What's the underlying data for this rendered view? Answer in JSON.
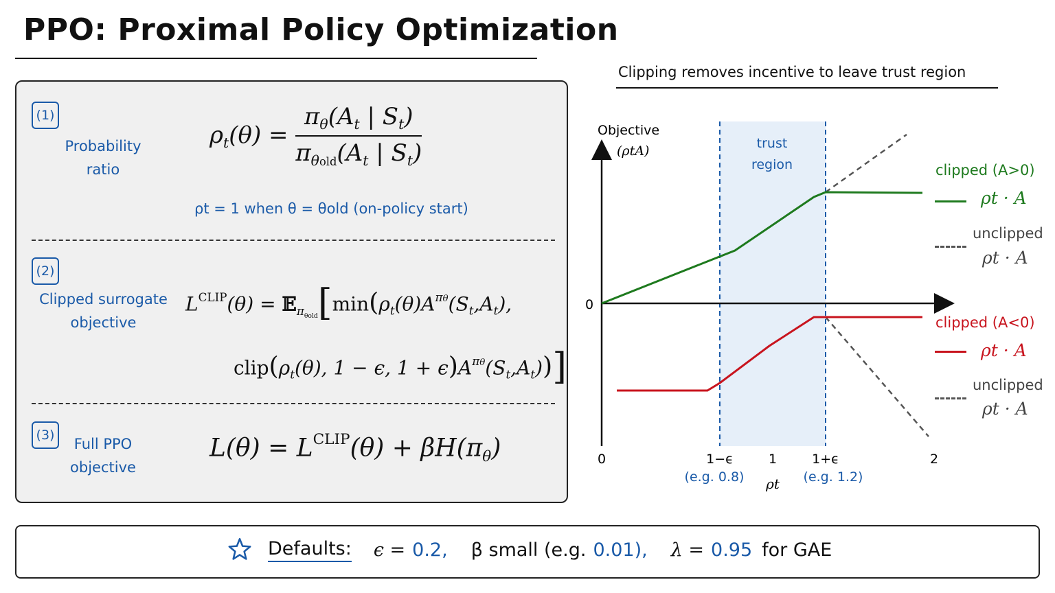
{
  "title": "PPO: Proximal Policy Optimization",
  "panel": {
    "sections": [
      {
        "number": "(1)",
        "label_line1": "Probability",
        "label_line2": "ratio"
      },
      {
        "number": "(2)",
        "label_line1": "Clipped surrogate",
        "label_line2": "objective"
      },
      {
        "number": "(3)",
        "label_line1": "Full PPO",
        "label_line2": "objective"
      }
    ],
    "on_policy_note": "ρt = 1 when θ = θold (on-policy start)"
  },
  "chart": {
    "title": "Clipping removes incentive to leave trust region",
    "y_axis_label_line1": "Objective",
    "y_axis_label_line2": "(ρtA)",
    "x_axis_label": "ρt",
    "origin_label": "0",
    "x_zero": "0",
    "ticks": [
      {
        "label": "1−ϵ",
        "sub": "(e.g. 0.8)"
      },
      {
        "label": "1",
        "sub": ""
      },
      {
        "label": "1+ϵ",
        "sub": "(e.g. 1.2)"
      },
      {
        "label": "2",
        "sub": ""
      }
    ],
    "region_line1": "trust",
    "region_line2": "region",
    "legend": {
      "clipped_pos": "clipped (A>0)",
      "clipped_neg": "clipped (A<0)",
      "unclipped": "unclipped",
      "product": "ρt · A"
    },
    "colors": {
      "positive": "#1e7a1e",
      "negative": "#c8141e",
      "unclipped": "#555555",
      "region": "#e6eff9",
      "accent": "#1a5aa8"
    }
  },
  "defaults": {
    "icon": "star-icon",
    "label": "Defaults:",
    "eps_sym": "ϵ =",
    "eps_val": "0.2,",
    "beta_text": "β small (e.g.",
    "beta_val": "0.01),",
    "lambda_sym": "λ =",
    "lambda_val": "0.95",
    "lambda_tail": "for GAE"
  }
}
